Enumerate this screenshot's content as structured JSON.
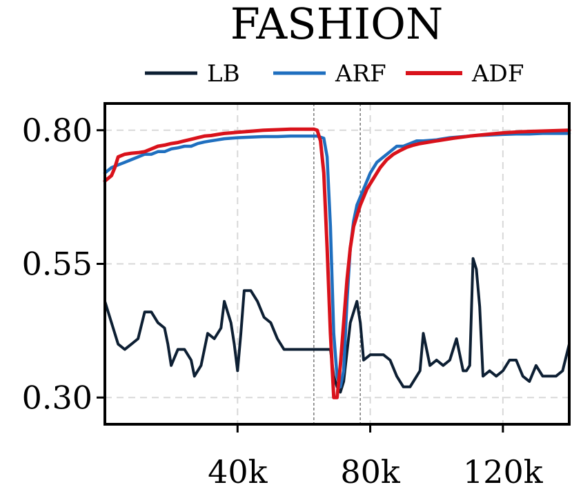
{
  "chart_data": {
    "type": "line",
    "title": "FASHION",
    "xlabel": "",
    "ylabel": "",
    "xlim": [
      0,
      140000
    ],
    "ylim": [
      0.25,
      0.85
    ],
    "xticks": [
      40000,
      80000,
      120000
    ],
    "xtick_labels": [
      "40k",
      "80k",
      "120k"
    ],
    "yticks": [
      0.3,
      0.55,
      0.8
    ],
    "ytick_labels": [
      "0.30",
      "0.55",
      "0.80"
    ],
    "grid": true,
    "legend_position": "top-center",
    "vertical_markers": [
      63000,
      77000
    ],
    "series": [
      {
        "name": "LB",
        "color": "#0d1f33",
        "points": [
          [
            0,
            0.48
          ],
          [
            2000,
            0.44
          ],
          [
            4000,
            0.4
          ],
          [
            6000,
            0.39
          ],
          [
            8000,
            0.4
          ],
          [
            10000,
            0.41
          ],
          [
            12000,
            0.46
          ],
          [
            14000,
            0.46
          ],
          [
            16000,
            0.44
          ],
          [
            18000,
            0.43
          ],
          [
            19000,
            0.4
          ],
          [
            20000,
            0.36
          ],
          [
            22000,
            0.39
          ],
          [
            24000,
            0.39
          ],
          [
            26000,
            0.37
          ],
          [
            27000,
            0.34
          ],
          [
            29000,
            0.36
          ],
          [
            31000,
            0.42
          ],
          [
            33000,
            0.41
          ],
          [
            35000,
            0.43
          ],
          [
            36000,
            0.48
          ],
          [
            38000,
            0.44
          ],
          [
            39000,
            0.4
          ],
          [
            40000,
            0.35
          ],
          [
            41000,
            0.42
          ],
          [
            42000,
            0.5
          ],
          [
            44000,
            0.5
          ],
          [
            46000,
            0.48
          ],
          [
            48000,
            0.45
          ],
          [
            50000,
            0.44
          ],
          [
            52000,
            0.41
          ],
          [
            54000,
            0.39
          ],
          [
            56000,
            0.39
          ],
          [
            58000,
            0.39
          ],
          [
            60000,
            0.39
          ],
          [
            62000,
            0.39
          ],
          [
            64000,
            0.39
          ],
          [
            66000,
            0.39
          ],
          [
            68000,
            0.39
          ],
          [
            69000,
            0.34
          ],
          [
            70000,
            0.32
          ],
          [
            71000,
            0.31
          ],
          [
            72000,
            0.33
          ],
          [
            74000,
            0.44
          ],
          [
            76000,
            0.48
          ],
          [
            77000,
            0.44
          ],
          [
            78000,
            0.37
          ],
          [
            80000,
            0.38
          ],
          [
            82000,
            0.38
          ],
          [
            84000,
            0.38
          ],
          [
            86000,
            0.37
          ],
          [
            88000,
            0.34
          ],
          [
            90000,
            0.32
          ],
          [
            92000,
            0.32
          ],
          [
            94000,
            0.34
          ],
          [
            95000,
            0.35
          ],
          [
            96000,
            0.42
          ],
          [
            98000,
            0.36
          ],
          [
            100000,
            0.37
          ],
          [
            102000,
            0.36
          ],
          [
            104000,
            0.37
          ],
          [
            106000,
            0.41
          ],
          [
            108000,
            0.35
          ],
          [
            109000,
            0.35
          ],
          [
            110000,
            0.36
          ],
          [
            111000,
            0.56
          ],
          [
            112000,
            0.54
          ],
          [
            113000,
            0.47
          ],
          [
            114000,
            0.34
          ],
          [
            116000,
            0.35
          ],
          [
            118000,
            0.34
          ],
          [
            120000,
            0.35
          ],
          [
            122000,
            0.37
          ],
          [
            124000,
            0.37
          ],
          [
            126000,
            0.34
          ],
          [
            128000,
            0.33
          ],
          [
            130000,
            0.36
          ],
          [
            132000,
            0.34
          ],
          [
            134000,
            0.34
          ],
          [
            136000,
            0.34
          ],
          [
            138000,
            0.35
          ],
          [
            140000,
            0.4
          ]
        ]
      },
      {
        "name": "ARF",
        "color": "#1f6fbf",
        "points": [
          [
            0,
            0.72
          ],
          [
            2000,
            0.73
          ],
          [
            4000,
            0.735
          ],
          [
            6000,
            0.74
          ],
          [
            8000,
            0.745
          ],
          [
            10000,
            0.75
          ],
          [
            12000,
            0.755
          ],
          [
            14000,
            0.755
          ],
          [
            16000,
            0.76
          ],
          [
            18000,
            0.76
          ],
          [
            20000,
            0.765
          ],
          [
            22000,
            0.767
          ],
          [
            24000,
            0.77
          ],
          [
            26000,
            0.77
          ],
          [
            28000,
            0.775
          ],
          [
            30000,
            0.778
          ],
          [
            32000,
            0.78
          ],
          [
            34000,
            0.782
          ],
          [
            36000,
            0.784
          ],
          [
            38000,
            0.785
          ],
          [
            40000,
            0.786
          ],
          [
            44000,
            0.787
          ],
          [
            48000,
            0.788
          ],
          [
            52000,
            0.788
          ],
          [
            56000,
            0.789
          ],
          [
            60000,
            0.789
          ],
          [
            64000,
            0.789
          ],
          [
            66000,
            0.785
          ],
          [
            67000,
            0.75
          ],
          [
            68000,
            0.62
          ],
          [
            69000,
            0.42
          ],
          [
            70000,
            0.34
          ],
          [
            71000,
            0.32
          ],
          [
            72000,
            0.35
          ],
          [
            73000,
            0.48
          ],
          [
            74000,
            0.58
          ],
          [
            75000,
            0.63
          ],
          [
            76000,
            0.66
          ],
          [
            78000,
            0.69
          ],
          [
            80000,
            0.72
          ],
          [
            82000,
            0.74
          ],
          [
            84000,
            0.75
          ],
          [
            86000,
            0.76
          ],
          [
            88000,
            0.77
          ],
          [
            90000,
            0.77
          ],
          [
            92000,
            0.775
          ],
          [
            94000,
            0.78
          ],
          [
            96000,
            0.78
          ],
          [
            100000,
            0.782
          ],
          [
            104000,
            0.786
          ],
          [
            108000,
            0.788
          ],
          [
            112000,
            0.79
          ],
          [
            116000,
            0.791
          ],
          [
            120000,
            0.792
          ],
          [
            124000,
            0.793
          ],
          [
            128000,
            0.793
          ],
          [
            132000,
            0.794
          ],
          [
            136000,
            0.794
          ],
          [
            140000,
            0.794
          ]
        ]
      },
      {
        "name": "ADF",
        "color": "#d9121b",
        "points": [
          [
            0,
            0.705
          ],
          [
            2000,
            0.715
          ],
          [
            3000,
            0.73
          ],
          [
            4000,
            0.75
          ],
          [
            6000,
            0.755
          ],
          [
            8000,
            0.757
          ],
          [
            10000,
            0.758
          ],
          [
            12000,
            0.76
          ],
          [
            14000,
            0.765
          ],
          [
            16000,
            0.77
          ],
          [
            18000,
            0.772
          ],
          [
            20000,
            0.775
          ],
          [
            22000,
            0.777
          ],
          [
            24000,
            0.78
          ],
          [
            26000,
            0.783
          ],
          [
            28000,
            0.786
          ],
          [
            30000,
            0.789
          ],
          [
            32000,
            0.79
          ],
          [
            34000,
            0.792
          ],
          [
            36000,
            0.794
          ],
          [
            38000,
            0.795
          ],
          [
            40000,
            0.796
          ],
          [
            44000,
            0.798
          ],
          [
            48000,
            0.8
          ],
          [
            52000,
            0.801
          ],
          [
            56000,
            0.802
          ],
          [
            60000,
            0.802
          ],
          [
            63000,
            0.802
          ],
          [
            64000,
            0.8
          ],
          [
            65000,
            0.78
          ],
          [
            66000,
            0.72
          ],
          [
            67000,
            0.58
          ],
          [
            68000,
            0.42
          ],
          [
            69000,
            0.3
          ],
          [
            70000,
            0.3
          ],
          [
            71000,
            0.36
          ],
          [
            72000,
            0.44
          ],
          [
            73000,
            0.52
          ],
          [
            74000,
            0.58
          ],
          [
            75000,
            0.62
          ],
          [
            77000,
            0.66
          ],
          [
            79000,
            0.69
          ],
          [
            81000,
            0.71
          ],
          [
            83000,
            0.73
          ],
          [
            85000,
            0.745
          ],
          [
            87000,
            0.755
          ],
          [
            89000,
            0.762
          ],
          [
            91000,
            0.768
          ],
          [
            93000,
            0.772
          ],
          [
            95000,
            0.775
          ],
          [
            100000,
            0.78
          ],
          [
            105000,
            0.785
          ],
          [
            110000,
            0.789
          ],
          [
            115000,
            0.792
          ],
          [
            120000,
            0.795
          ],
          [
            125000,
            0.797
          ],
          [
            130000,
            0.798
          ],
          [
            135000,
            0.799
          ],
          [
            140000,
            0.8
          ]
        ]
      }
    ]
  }
}
